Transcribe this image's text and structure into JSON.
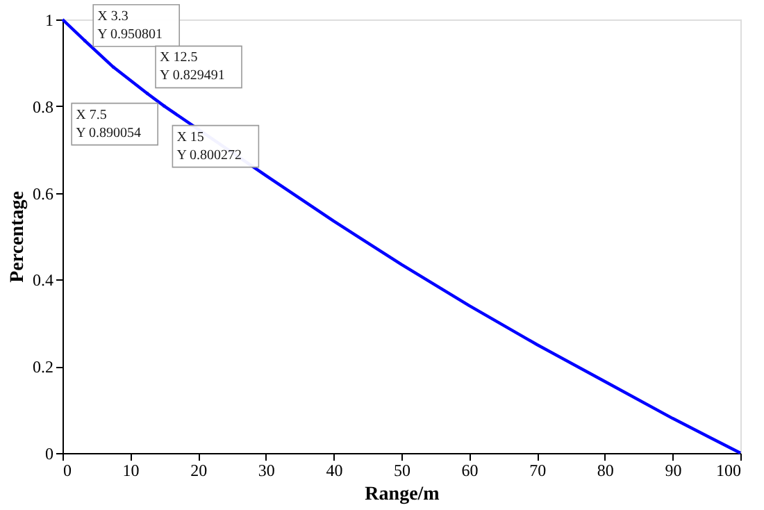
{
  "chart_data": {
    "type": "line",
    "xlabel": "Range/m",
    "ylabel": "Percentage",
    "x": [
      0,
      3.3,
      7.5,
      12.5,
      15,
      30,
      40,
      50,
      60,
      70,
      80,
      90,
      100
    ],
    "series": [
      {
        "color": "#0000ff",
        "values": [
          1,
          0.950801,
          0.890054,
          0.829491,
          0.800272,
          0.64,
          0.535,
          0.435,
          0.34,
          0.25,
          0.165,
          0.08,
          0
        ]
      }
    ],
    "xlim": [
      0,
      100
    ],
    "xticks": [
      0,
      10,
      20,
      30,
      40,
      50,
      60,
      70,
      80,
      90,
      100
    ],
    "ylim": [
      0,
      1
    ],
    "yticks": [
      0,
      0.2,
      0.4,
      0.6,
      0.8,
      1
    ],
    "grid": false,
    "legend": false,
    "marker": "none",
    "line_style": "solid",
    "annotations": [
      {
        "text": "X 3.3\nY 0.950801",
        "x": 3.3,
        "y": 0.950801
      },
      {
        "text": "X 7.5\nY 0.890054",
        "x": 7.5,
        "y": 0.890054
      },
      {
        "text": "X 12.5\nY 0.829491",
        "x": 12.5,
        "y": 0.829491
      },
      {
        "text": "X 15\nY 0.800272",
        "x": 15,
        "y": 0.800272
      }
    ]
  }
}
